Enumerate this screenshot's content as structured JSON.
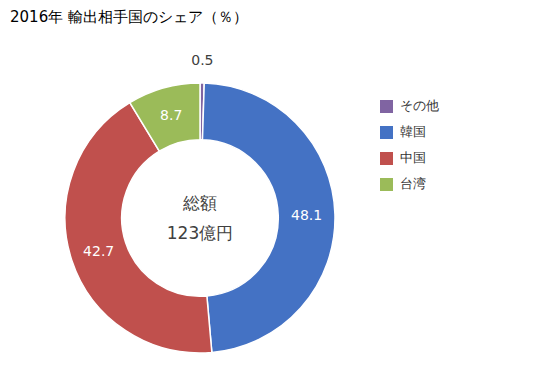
{
  "chart_data": {
    "type": "pie",
    "title": "2016年 輸出相手国のシェア（％）",
    "categories": [
      "その他",
      "韓国",
      "中国",
      "台湾"
    ],
    "values": [
      0.5,
      48.1,
      42.7,
      8.7
    ],
    "colors": [
      "#8064A2",
      "#4472C4",
      "#C0504D",
      "#9BBB59"
    ],
    "annotations": [
      "総額",
      "123億円"
    ],
    "data_labels": true,
    "legend": "right"
  }
}
